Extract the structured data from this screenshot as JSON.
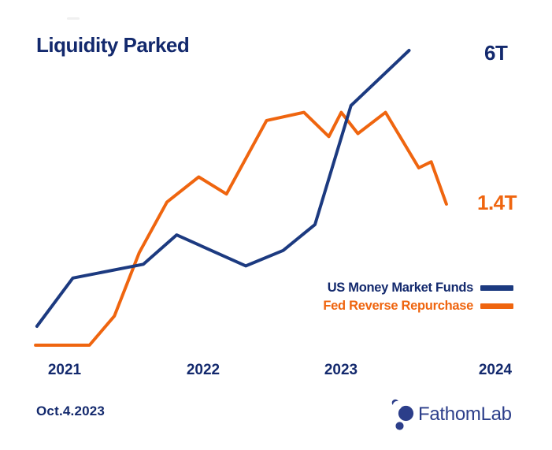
{
  "title": "Liquidity Parked",
  "annotations": {
    "navy_end_label": "6T",
    "orange_end_label": "1.4T"
  },
  "legend": [
    {
      "label": "US Money Market Funds",
      "color": "#1c3a80"
    },
    {
      "label": "Fed Reverse Repurchase",
      "color": "#ef650f"
    }
  ],
  "x_axis": {
    "ticks": [
      "2021",
      "2022",
      "2023",
      "2024"
    ]
  },
  "footer": {
    "date": "Oct.4.2023",
    "brand": "FathomLab"
  },
  "colors": {
    "navy_text": "#13296d",
    "navy_line": "#1c3a80",
    "orange": "#ef650f",
    "logo": "#2c3e8a",
    "background": "#ffffff"
  },
  "chart_data": {
    "type": "line",
    "title": "Liquidity Parked",
    "x_unit": "year (decimal)",
    "y_unit": "trillions USD",
    "grid": false,
    "legend_position": "middle-right",
    "x_ticks": [
      2021,
      2022,
      2023,
      2024
    ],
    "note": "stylized dual-scale line chart; each series plotted on its own vertical scale; end values labeled 6T and 1.4T",
    "series": [
      {
        "name": "US Money Market Funds",
        "color": "#1c3a80",
        "end_label": "6T",
        "points": [
          [
            2020.8,
            4.4
          ],
          [
            2021.06,
            4.68
          ],
          [
            2021.57,
            4.76
          ],
          [
            2021.81,
            4.93
          ],
          [
            2022.31,
            4.75
          ],
          [
            2022.58,
            4.84
          ],
          [
            2022.81,
            4.99
          ],
          [
            2023.07,
            5.68
          ],
          [
            2023.49,
            6.0
          ]
        ]
      },
      {
        "name": "Fed Reverse Repurchase",
        "color": "#ef650f",
        "end_label": "1.4T",
        "points": [
          [
            2020.79,
            0.0
          ],
          [
            2021.18,
            0.0
          ],
          [
            2021.36,
            0.29
          ],
          [
            2021.54,
            0.92
          ],
          [
            2021.74,
            1.42
          ],
          [
            2021.97,
            1.67
          ],
          [
            2022.17,
            1.5
          ],
          [
            2022.46,
            2.23
          ],
          [
            2022.73,
            2.31
          ],
          [
            2022.91,
            2.07
          ],
          [
            2023.0,
            2.31
          ],
          [
            2023.12,
            2.1
          ],
          [
            2023.32,
            2.31
          ],
          [
            2023.56,
            1.76
          ],
          [
            2023.65,
            1.82
          ],
          [
            2023.76,
            1.4
          ]
        ]
      }
    ]
  }
}
